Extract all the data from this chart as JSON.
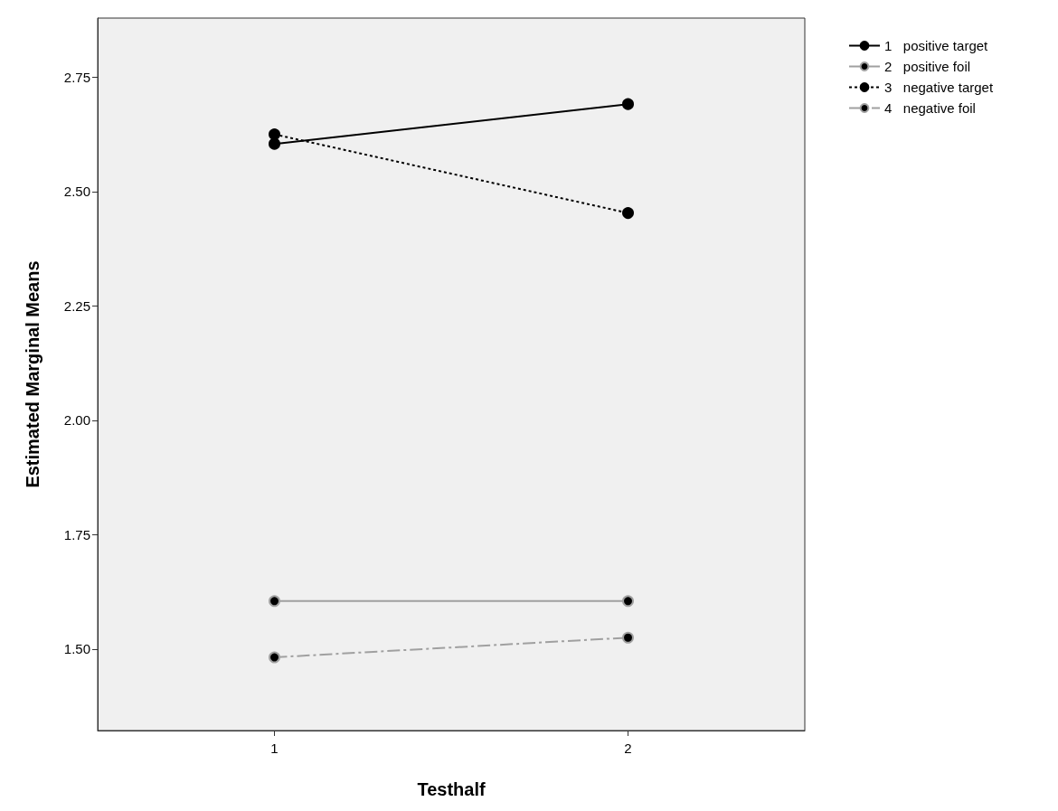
{
  "chart_data": {
    "type": "line",
    "xlabel": "Testhalf",
    "ylabel": "Estimated Marginal Means",
    "categories": [
      "1",
      "2"
    ],
    "series": [
      {
        "name": "1   positive target",
        "color": "#000000",
        "line_style": "solid",
        "values": [
          2.604,
          2.691
        ]
      },
      {
        "name": "2   positive foil",
        "color": "#a0a0a0",
        "line_style": "solid",
        "values": [
          1.605,
          1.605
        ]
      },
      {
        "name": "3   negative target",
        "color": "#000000",
        "line_style": "dotted",
        "values": [
          2.625,
          2.453
        ]
      },
      {
        "name": "4   negative foil",
        "color": "#a0a0a0",
        "line_style": "dashed",
        "values": [
          1.482,
          1.525
        ]
      }
    ],
    "ylim": [
      1.322,
      2.879
    ],
    "yticks": [
      {
        "value": 1.5,
        "label": "1.50"
      },
      {
        "value": 1.75,
        "label": "1.75"
      },
      {
        "value": 2.0,
        "label": "2.00"
      },
      {
        "value": 2.25,
        "label": "2.25"
      },
      {
        "value": 2.5,
        "label": "2.50"
      },
      {
        "value": 2.75,
        "label": "2.75"
      }
    ],
    "marker": "circle",
    "grid": false,
    "legend": "top right"
  }
}
